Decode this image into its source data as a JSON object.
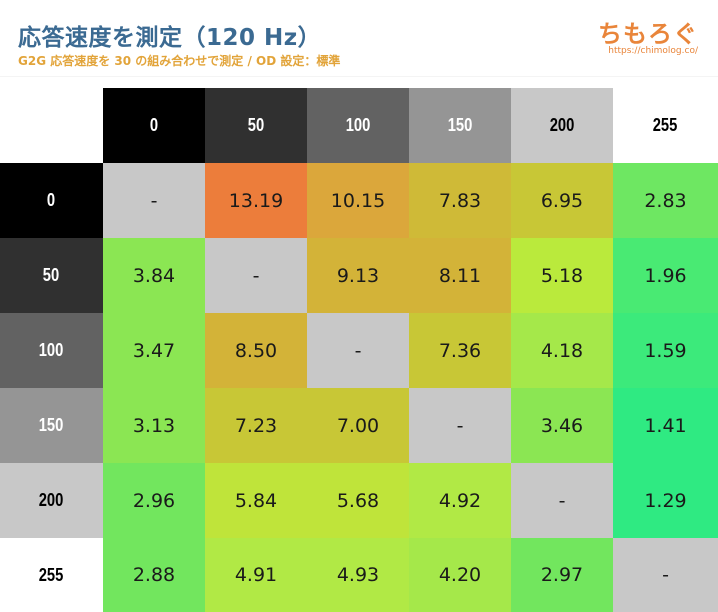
{
  "header": {
    "title": "応答速度を測定（120 Hz）",
    "subtitle": "G2G 応答速度を 30 の組み合わせで測定 / OD 設定：標準",
    "logo_text": "ちもろぐ",
    "logo_url": "https://chimolog.co/"
  },
  "colors": {
    "title": "#3b6a92",
    "subtitle": "#e2a43a",
    "logo": "#e9853a",
    "diagonal": "#c8c8c8",
    "header_backgrounds": [
      "#000000",
      "#303030",
      "#626262",
      "#959595",
      "#c8c8c8",
      "#ffffff"
    ],
    "header_text": [
      "#ffffff",
      "#ffffff",
      "#ffffff",
      "#ffffff",
      "#000000",
      "#000000"
    ]
  },
  "chart_data": {
    "type": "heatmap",
    "title": "応答速度を測定（120 Hz）",
    "subtitle": "G2G 応答速度を 30 の組み合わせで測定 / OD 設定：標準",
    "xlabel": "",
    "ylabel": "",
    "columns": [
      "0",
      "50",
      "100",
      "150",
      "200",
      "255"
    ],
    "rows": [
      "0",
      "50",
      "100",
      "150",
      "200",
      "255"
    ],
    "values": [
      [
        "-",
        "13.19",
        "10.15",
        "7.83",
        "6.95",
        "2.83"
      ],
      [
        "3.84",
        "-",
        "9.13",
        "8.11",
        "5.18",
        "1.96"
      ],
      [
        "3.47",
        "8.50",
        "-",
        "7.36",
        "4.18",
        "1.59"
      ],
      [
        "3.13",
        "7.23",
        "7.00",
        "-",
        "3.46",
        "1.41"
      ],
      [
        "2.96",
        "5.84",
        "5.68",
        "4.92",
        "-",
        "1.29"
      ],
      [
        "2.88",
        "4.91",
        "4.93",
        "4.20",
        "2.97",
        "-"
      ]
    ],
    "cell_colors": [
      [
        "#c8c8c8",
        "#ec7d3b",
        "#dba73b",
        "#cfba37",
        "#c8c736",
        "#6ee762"
      ],
      [
        "#8be653",
        "#c8c8c8",
        "#d3b338",
        "#d3b338",
        "#baea3c",
        "#49ea73"
      ],
      [
        "#8be653",
        "#d3b338",
        "#c8c8c8",
        "#c8c736",
        "#a5e84a",
        "#3cea7b"
      ],
      [
        "#8be653",
        "#c8c736",
        "#c8c736",
        "#c8c8c8",
        "#8be653",
        "#2fea82"
      ],
      [
        "#72e65e",
        "#bfe43a",
        "#bfe43a",
        "#b1e945",
        "#c8c8c8",
        "#2fea82"
      ],
      [
        "#72e65e",
        "#b1e945",
        "#b1e945",
        "#a5e84a",
        "#72e65e",
        "#c8c8c8"
      ]
    ]
  }
}
